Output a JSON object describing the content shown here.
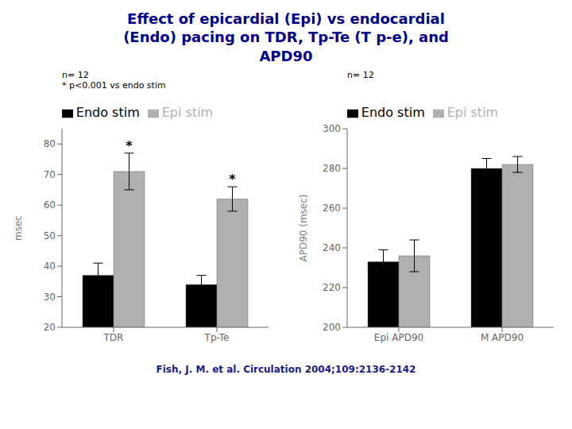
{
  "title": "Effect of epicardial (Epi) vs endocardial\n(Endo) pacing on TDR, Tp-Te (T p-e), and\nAPD90",
  "annotations": [
    "Fish, J. M. et al. Circulation 2004;109:2136-2142"
  ],
  "chart_data": [
    {
      "type": "bar",
      "ylabel": "msec",
      "categories": [
        "TDR",
        "Tp-Te"
      ],
      "series": [
        {
          "name": "Endo stim",
          "color": "#000000",
          "values": [
            37,
            34
          ],
          "errors": [
            4,
            3
          ]
        },
        {
          "name": "Epi stim",
          "color": "#b0b0b0",
          "values": [
            71,
            62
          ],
          "errors": [
            6,
            4
          ]
        }
      ],
      "ylim": [
        20,
        85
      ],
      "yticks": [
        20,
        30,
        40,
        50,
        60,
        70,
        80
      ],
      "grid": false,
      "legend": "top",
      "annotations": [
        {
          "text": "*",
          "category": "TDR",
          "series": "Epi stim"
        },
        {
          "text": "*",
          "category": "Tp-Te",
          "series": "Epi stim"
        },
        {
          "text": "n= 12"
        },
        {
          "text": "* p<0.001 vs endo stim"
        }
      ]
    },
    {
      "type": "bar",
      "ylabel": "APD90 (msec)",
      "categories": [
        "Epi APD90",
        "M APD90"
      ],
      "series": [
        {
          "name": "Endo stim",
          "color": "#000000",
          "values": [
            233,
            280
          ],
          "errors": [
            6,
            5
          ]
        },
        {
          "name": "Epi stim",
          "color": "#b0b0b0",
          "values": [
            236,
            282
          ],
          "errors": [
            8,
            4
          ]
        }
      ],
      "ylim": [
        200,
        300
      ],
      "yticks": [
        200,
        220,
        240,
        260,
        280,
        300
      ],
      "grid": false,
      "legend": "top",
      "annotations": [
        {
          "text": "n= 12"
        }
      ]
    }
  ]
}
